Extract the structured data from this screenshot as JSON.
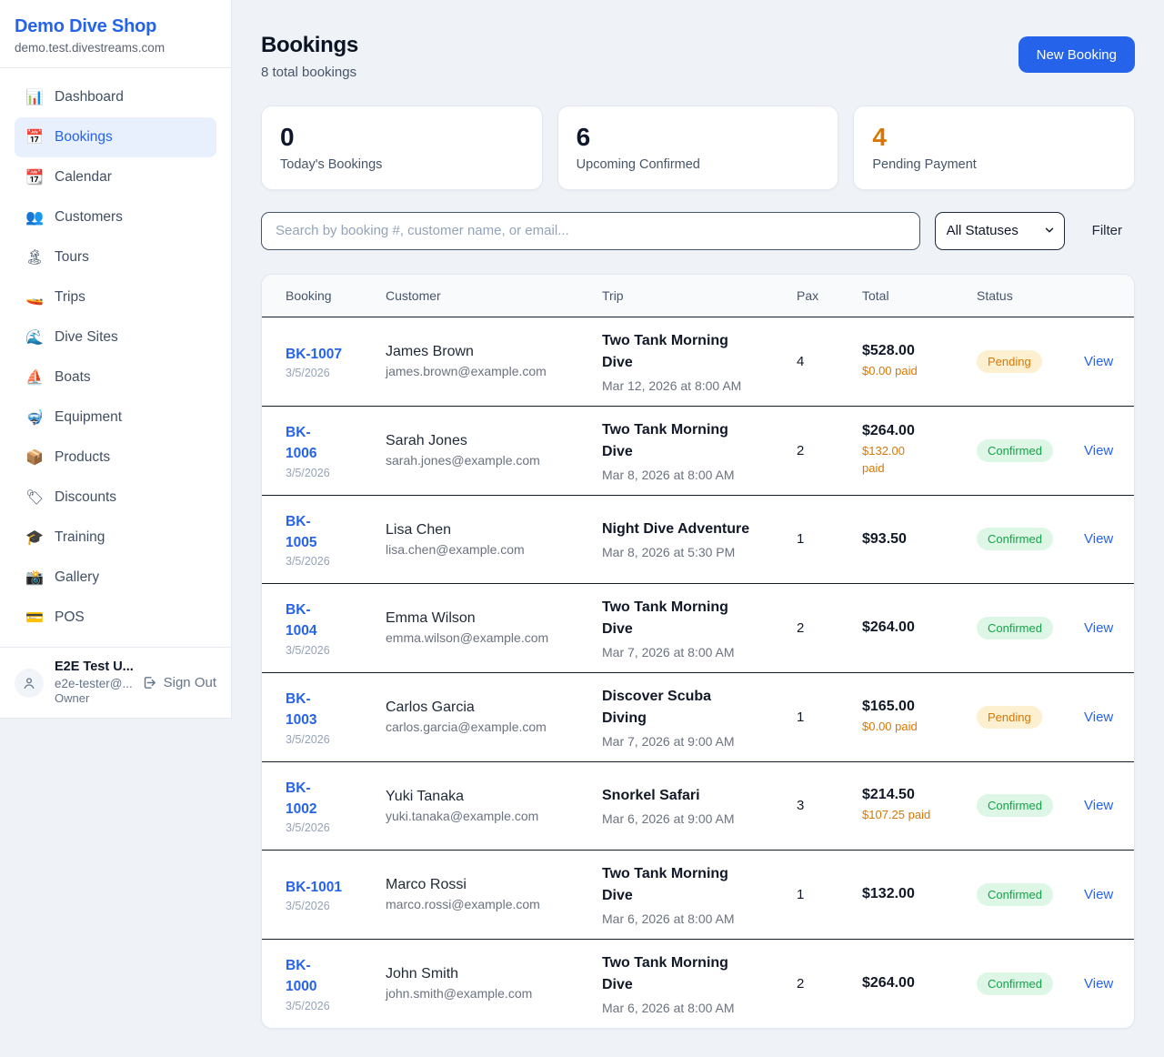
{
  "colors": {
    "accent": "#2563eb",
    "pending": "#d97706",
    "confirmed": "#16a34a"
  },
  "sidebar": {
    "title": "Demo Dive Shop",
    "domain": "demo.test.divestreams.com",
    "items": [
      {
        "icon": "📊",
        "icon_name": "bar-chart-icon",
        "label": "Dashboard",
        "active": false
      },
      {
        "icon": "📅",
        "icon_name": "calendar-icon",
        "label": "Bookings",
        "active": true
      },
      {
        "icon": "📆",
        "icon_name": "tear-off-calendar-icon",
        "label": "Calendar",
        "active": false
      },
      {
        "icon": "👥",
        "icon_name": "people-icon",
        "label": "Customers",
        "active": false
      },
      {
        "icon": "🏝",
        "icon_name": "island-icon",
        "label": "Tours",
        "active": false
      },
      {
        "icon": "🚤",
        "icon_name": "speedboat-icon",
        "label": "Trips",
        "active": false
      },
      {
        "icon": "🌊",
        "icon_name": "wave-icon",
        "label": "Dive Sites",
        "active": false
      },
      {
        "icon": "⛵",
        "icon_name": "sailboat-icon",
        "label": "Boats",
        "active": false
      },
      {
        "icon": "🤿",
        "icon_name": "diving-mask-icon",
        "label": "Equipment",
        "active": false
      },
      {
        "icon": "📦",
        "icon_name": "package-icon",
        "label": "Products",
        "active": false
      },
      {
        "icon": "🏷",
        "icon_name": "label-tag-icon",
        "label": "Discounts",
        "active": false
      },
      {
        "icon": "🎓",
        "icon_name": "graduation-cap-icon",
        "label": "Training",
        "active": false
      },
      {
        "icon": "📸",
        "icon_name": "camera-icon",
        "label": "Gallery",
        "active": false
      },
      {
        "icon": "💳",
        "icon_name": "credit-card-icon",
        "label": "POS",
        "active": false
      }
    ],
    "user": {
      "name": "E2E Test U...",
      "email": "e2e-tester@...",
      "role": "Owner",
      "sign_out_label": "Sign Out"
    }
  },
  "header": {
    "title": "Bookings",
    "subtitle": "8 total bookings",
    "new_booking_label": "New Booking"
  },
  "stats": [
    {
      "value": "0",
      "label": "Today's Bookings",
      "variant": "default"
    },
    {
      "value": "6",
      "label": "Upcoming Confirmed",
      "variant": "default"
    },
    {
      "value": "4",
      "label": "Pending Payment",
      "variant": "pending"
    }
  ],
  "filters": {
    "search_placeholder": "Search by booking #, customer name, or email...",
    "status_selected": "All Statuses",
    "filter_label": "Filter"
  },
  "table": {
    "columns": [
      "Booking",
      "Customer",
      "Trip",
      "Pax",
      "Total",
      "Status"
    ],
    "view_label": "View",
    "rows": [
      {
        "id": "BK-1007",
        "id_display": "BK-1007",
        "date": "3/5/2026",
        "customer": "James Brown",
        "email": "james.brown@example.com",
        "trip": "Two Tank Morning Dive",
        "trip_display": "Two Tank Morning\nDive",
        "trip_time": "Mar 12, 2026 at 8:00 AM",
        "pax": "4",
        "total": "$528.00",
        "paid": "$0.00 paid",
        "status": "Pending"
      },
      {
        "id": "BK-1006",
        "id_display": "BK-\n1006",
        "date": "3/5/2026",
        "customer": "Sarah Jones",
        "email": "sarah.jones@example.com",
        "trip": "Two Tank Morning Dive",
        "trip_display": "Two Tank Morning\nDive",
        "trip_time": "Mar 8, 2026 at 8:00 AM",
        "pax": "2",
        "total": "$264.00",
        "paid": "$132.00\npaid",
        "status": "Confirmed"
      },
      {
        "id": "BK-1005",
        "id_display": "BK-\n1005",
        "date": "3/5/2026",
        "customer": "Lisa Chen",
        "email": "lisa.chen@example.com",
        "trip": "Night Dive Adventure",
        "trip_display": "Night Dive Adventure",
        "trip_time": "Mar 8, 2026 at 5:30 PM",
        "pax": "1",
        "total": "$93.50",
        "paid": null,
        "status": "Confirmed"
      },
      {
        "id": "BK-1004",
        "id_display": "BK-\n1004",
        "date": "3/5/2026",
        "customer": "Emma Wilson",
        "email": "emma.wilson@example.com",
        "trip": "Two Tank Morning Dive",
        "trip_display": "Two Tank Morning\nDive",
        "trip_time": "Mar 7, 2026 at 8:00 AM",
        "pax": "2",
        "total": "$264.00",
        "paid": null,
        "status": "Confirmed"
      },
      {
        "id": "BK-1003",
        "id_display": "BK-\n1003",
        "date": "3/5/2026",
        "customer": "Carlos Garcia",
        "email": "carlos.garcia@example.com",
        "trip": "Discover Scuba Diving",
        "trip_display": "Discover Scuba\nDiving",
        "trip_time": "Mar 7, 2026 at 9:00 AM",
        "pax": "1",
        "total": "$165.00",
        "paid": "$0.00 paid",
        "status": "Pending"
      },
      {
        "id": "BK-1002",
        "id_display": "BK-\n1002",
        "date": "3/5/2026",
        "customer": "Yuki Tanaka",
        "email": "yuki.tanaka@example.com",
        "trip": "Snorkel Safari",
        "trip_display": "Snorkel Safari",
        "trip_time": "Mar 6, 2026 at 9:00 AM",
        "pax": "3",
        "total": "$214.50",
        "paid": "$107.25 paid",
        "status": "Confirmed"
      },
      {
        "id": "BK-1001",
        "id_display": "BK-1001",
        "date": "3/5/2026",
        "customer": "Marco Rossi",
        "email": "marco.rossi@example.com",
        "trip": "Two Tank Morning Dive",
        "trip_display": "Two Tank Morning\nDive",
        "trip_time": "Mar 6, 2026 at 8:00 AM",
        "pax": "1",
        "total": "$132.00",
        "paid": null,
        "status": "Confirmed"
      },
      {
        "id": "BK-1000",
        "id_display": "BK-\n1000",
        "date": "3/5/2026",
        "customer": "John Smith",
        "email": "john.smith@example.com",
        "trip": "Two Tank Morning Dive",
        "trip_display": "Two Tank Morning\nDive",
        "trip_time": "Mar 6, 2026 at 8:00 AM",
        "pax": "2",
        "total": "$264.00",
        "paid": null,
        "status": "Confirmed"
      }
    ]
  }
}
